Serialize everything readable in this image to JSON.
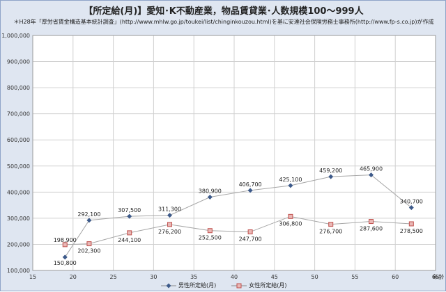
{
  "title": "【所定給(月)】愛知･K不動産業，物品賃貸業･人数規模100〜999人",
  "source": "＊H28年「厚労省賃金構造基本統計調査」(http://www.mhlw.go.jp/toukei/list/chinginkouzou.html)を基に安達社会保険労務士事務所(http://www.fp-s.co.jp)が作成",
  "xunit": "年齢",
  "colors": {
    "male": "#3d5a8a",
    "female": "#c0504d",
    "plot_bg": "#ffffff",
    "frame_bg": "#dfe6f1",
    "grid": "#d0d0d0"
  },
  "chart_data": {
    "type": "line",
    "xlim": [
      15,
      65
    ],
    "ylim": [
      100000,
      1000000
    ],
    "xticks": [
      15,
      20,
      25,
      30,
      35,
      40,
      45,
      50,
      55,
      60,
      65
    ],
    "yticks": [
      100000,
      200000,
      300000,
      400000,
      500000,
      600000,
      700000,
      800000,
      900000,
      1000000
    ],
    "ytick_labels": [
      "100,000",
      "200,000",
      "300,000",
      "400,000",
      "500,000",
      "600,000",
      "700,000",
      "800,000",
      "900,000",
      "1,000,000"
    ],
    "grid": true,
    "legend": "bottom",
    "series": [
      {
        "name": "男性所定給(月)",
        "marker": "diamond",
        "x": [
          19,
          22,
          27,
          32,
          37,
          42,
          47,
          52,
          57,
          62
        ],
        "values": [
          150800,
          292100,
          307500,
          311300,
          380900,
          406700,
          425100,
          459200,
          465900,
          340700
        ],
        "labels": [
          "150,800",
          "292,100",
          "307,500",
          "311,300",
          "380,900",
          "406,700",
          "425,100",
          "459,200",
          "465,900",
          "340,700"
        ]
      },
      {
        "name": "女性所定給(月)",
        "marker": "square",
        "x": [
          19,
          22,
          27,
          32,
          37,
          42,
          47,
          52,
          57,
          62
        ],
        "values": [
          198900,
          202300,
          244100,
          276200,
          252500,
          247700,
          306800,
          276700,
          287600,
          278500
        ],
        "labels": [
          "198,900",
          "202,300",
          "244,100",
          "276,200",
          "252,500",
          "247,700",
          "306,800",
          "276,700",
          "287,600",
          "278,500"
        ]
      }
    ]
  }
}
